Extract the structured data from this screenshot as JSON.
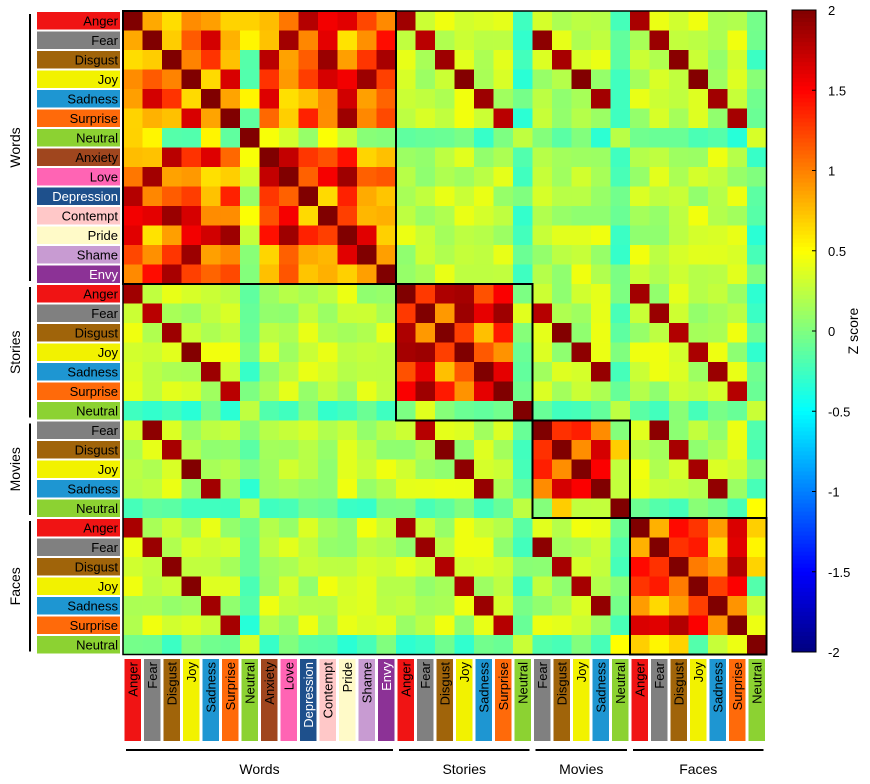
{
  "chart_data": {
    "type": "heatmap",
    "groups": [
      {
        "name": "Words",
        "labels": [
          "Anger",
          "Fear",
          "Disgust",
          "Joy",
          "Sadness",
          "Surprise",
          "Neutral",
          "Anxiety",
          "Love",
          "Depression",
          "Contempt",
          "Pride",
          "Shame",
          "Envy"
        ]
      },
      {
        "name": "Stories",
        "labels": [
          "Anger",
          "Fear",
          "Disgust",
          "Joy",
          "Sadness",
          "Surprise",
          "Neutral"
        ]
      },
      {
        "name": "Movies",
        "labels": [
          "Fear",
          "Disgust",
          "Joy",
          "Sadness",
          "Neutral"
        ]
      },
      {
        "name": "Faces",
        "labels": [
          "Anger",
          "Fear",
          "Disgust",
          "Joy",
          "Sadness",
          "Surprise",
          "Neutral"
        ]
      }
    ],
    "label_colors": {
      "Anger": "#f01414",
      "Fear": "#808080",
      "Disgust": "#a0640a",
      "Joy": "#f2f200",
      "Sadness": "#1e96d2",
      "Surprise": "#ff6a0a",
      "Neutral": "#8cd232",
      "Anxiety": "#a0461e",
      "Love": "#ff64b4",
      "Depression": "#1e508c",
      "Contempt": "#ffc8c8",
      "Pride": "#fffac8",
      "Shame": "#c89bd2",
      "Envy": "#8c3296"
    },
    "colorbar": {
      "label": "Z score",
      "min": -2,
      "max": 2,
      "ticks": [
        "2",
        "1.5",
        "1",
        "0.5",
        "0",
        "-0.5",
        "-1",
        "-1.5",
        "-2"
      ]
    },
    "colormap": "jet"
  }
}
